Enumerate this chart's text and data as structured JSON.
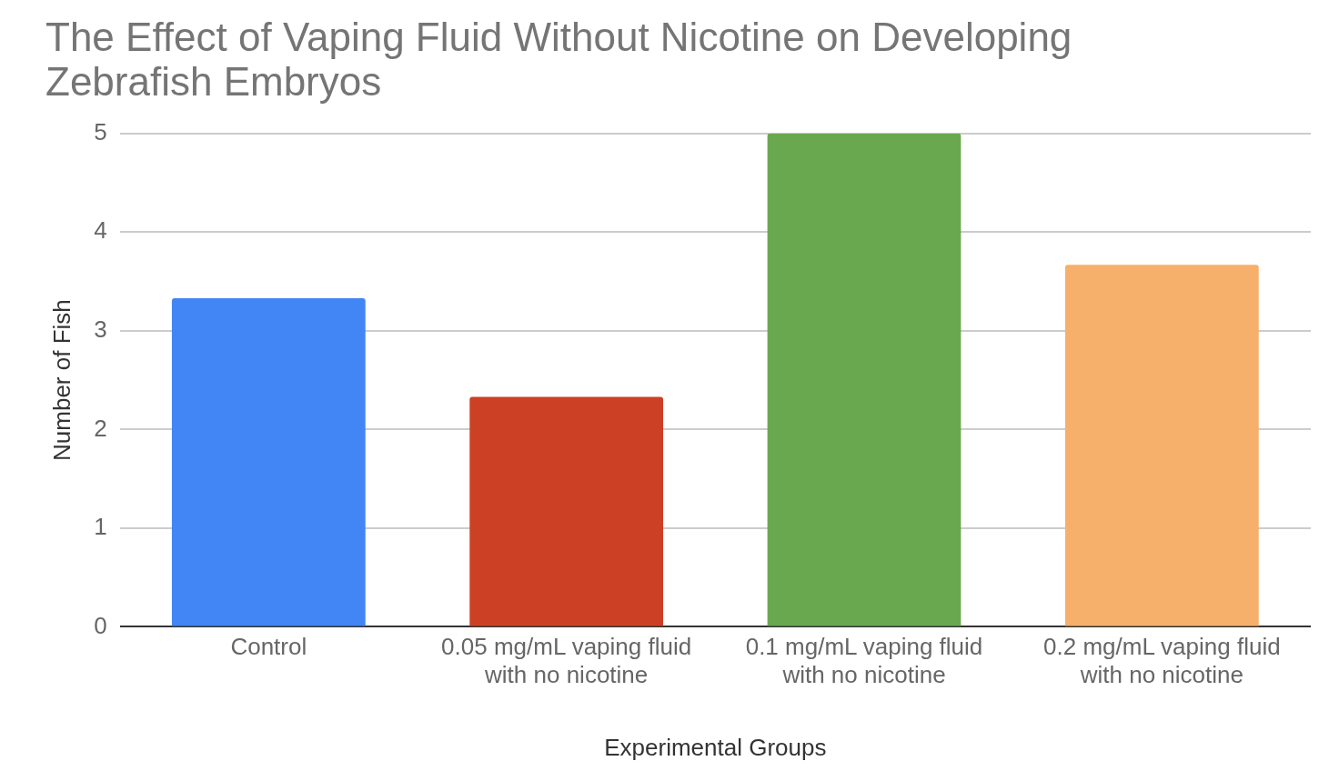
{
  "chart_data": {
    "type": "bar",
    "title": "The Effect of Vaping Fluid Without Nicotine on Developing Zebrafish Embryos",
    "xlabel": "Experimental Groups",
    "ylabel": "Number of Fish",
    "categories": [
      "Control",
      "0.05 mg/mL vaping fluid with no nicotine",
      "0.1 mg/mL vaping fluid with no nicotine",
      "0.2 mg/mL vaping fluid with no nicotine"
    ],
    "values": [
      3.33,
      2.33,
      5,
      3.67
    ],
    "colors": [
      "#4285f4",
      "#cc4125",
      "#6aa84f",
      "#f6b06b"
    ],
    "ylim": [
      0,
      5
    ],
    "yticks": [
      0,
      1,
      2,
      3,
      4,
      5
    ],
    "grid": "y",
    "legend": false
  }
}
